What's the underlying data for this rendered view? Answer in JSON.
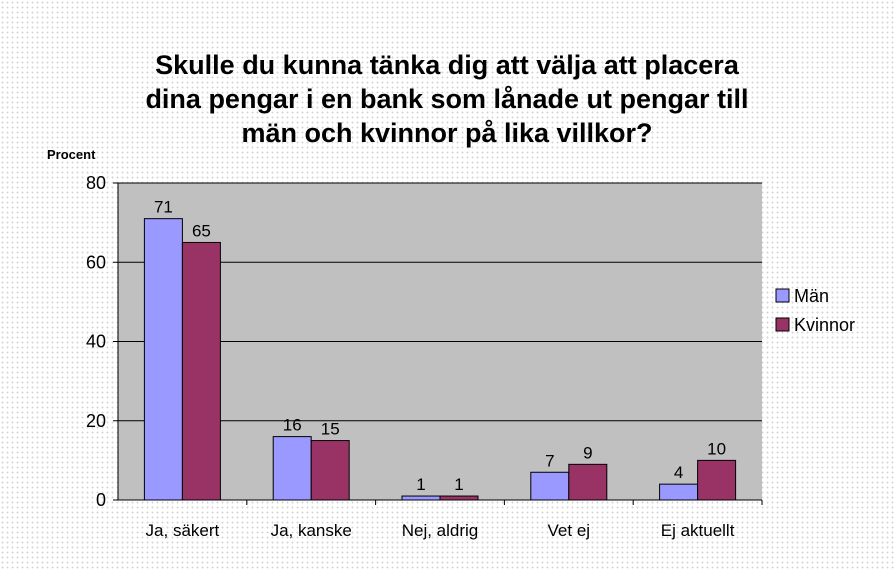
{
  "chart_data": {
    "type": "bar",
    "title_lines": [
      "Skulle du kunna tänka dig att välja att placera",
      "dina pengar i en bank som lånade ut pengar till",
      "män och kvinnor på lika villkor?"
    ],
    "ylabel": "Procent",
    "xlabel": "",
    "ylim": [
      0,
      80
    ],
    "yticks": [
      0,
      20,
      40,
      60,
      80
    ],
    "grid": true,
    "legend_position": "right",
    "categories": [
      "Ja, säkert",
      "Ja, kanske",
      "Nej, aldrig",
      "Vet ej",
      "Ej aktuellt"
    ],
    "series": [
      {
        "name": "Män",
        "color": "#9999ff",
        "values": [
          71,
          16,
          1,
          7,
          4
        ]
      },
      {
        "name": "Kvinnor",
        "color": "#993366",
        "values": [
          65,
          15,
          1,
          9,
          10
        ]
      }
    ],
    "plot_background": "#c0c0c0"
  }
}
